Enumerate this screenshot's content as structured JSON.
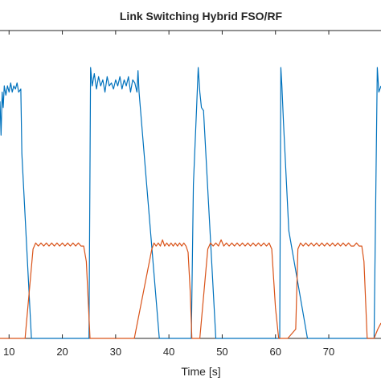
{
  "chart_data": {
    "type": "line",
    "title": "Link Switching Hybrid FSO/RF",
    "xlabel": "Time [s]",
    "ylabel": "",
    "xlim": [
      8.3,
      79.8
    ],
    "ylim": [
      0,
      1
    ],
    "x_ticks": [
      10,
      20,
      30,
      40,
      50,
      60,
      70
    ],
    "x_tick_labels": [
      "10",
      "20",
      "30",
      "40",
      "50",
      "60",
      "70"
    ],
    "grid": false,
    "colors": {
      "series_1": "#0072BD",
      "series_2": "#D95319",
      "axis": "#262626"
    },
    "series": [
      {
        "color": "#0072BD",
        "points": [
          [
            8.3,
            0.77
          ],
          [
            8.5,
            0.66
          ],
          [
            8.7,
            0.8
          ],
          [
            8.9,
            0.75
          ],
          [
            9.1,
            0.82
          ],
          [
            9.4,
            0.79
          ],
          [
            9.7,
            0.82
          ],
          [
            10.0,
            0.8
          ],
          [
            10.3,
            0.83
          ],
          [
            10.6,
            0.8
          ],
          [
            10.9,
            0.82
          ],
          [
            11.2,
            0.81
          ],
          [
            11.5,
            0.83
          ],
          [
            11.8,
            0.8
          ],
          [
            12.2,
            0.81
          ],
          [
            12.4,
            0.6
          ],
          [
            14.2,
            0.0
          ],
          [
            25.0,
            0.0
          ],
          [
            25.3,
            0.88
          ],
          [
            25.6,
            0.82
          ],
          [
            26.0,
            0.86
          ],
          [
            26.4,
            0.81
          ],
          [
            26.8,
            0.85
          ],
          [
            27.2,
            0.82
          ],
          [
            27.6,
            0.84
          ],
          [
            28.0,
            0.8
          ],
          [
            28.4,
            0.85
          ],
          [
            28.8,
            0.82
          ],
          [
            29.2,
            0.83
          ],
          [
            29.6,
            0.81
          ],
          [
            30.0,
            0.84
          ],
          [
            30.4,
            0.82
          ],
          [
            30.8,
            0.85
          ],
          [
            31.2,
            0.81
          ],
          [
            31.6,
            0.84
          ],
          [
            32.0,
            0.82
          ],
          [
            32.4,
            0.85
          ],
          [
            32.8,
            0.8
          ],
          [
            33.2,
            0.84
          ],
          [
            33.6,
            0.83
          ],
          [
            34.0,
            0.8
          ],
          [
            34.2,
            0.87
          ],
          [
            34.4,
            0.8
          ],
          [
            38.2,
            0.0
          ],
          [
            44.2,
            0.0
          ],
          [
            44.6,
            0.5
          ],
          [
            45.2,
            0.75
          ],
          [
            45.5,
            0.88
          ],
          [
            45.8,
            0.8
          ],
          [
            46.1,
            0.75
          ],
          [
            46.5,
            0.74
          ],
          [
            48.8,
            0.0
          ],
          [
            60.8,
            0.0
          ],
          [
            61.0,
            0.88
          ],
          [
            61.2,
            0.82
          ],
          [
            61.5,
            0.7
          ],
          [
            62.5,
            0.35
          ],
          [
            66.0,
            0.0
          ],
          [
            78.5,
            0.0
          ],
          [
            79.1,
            0.88
          ],
          [
            79.4,
            0.8
          ],
          [
            79.8,
            0.82
          ]
        ]
      },
      {
        "color": "#D95319",
        "points": [
          [
            8.3,
            0.0
          ],
          [
            13.0,
            0.0
          ],
          [
            14.5,
            0.29
          ],
          [
            15.0,
            0.31
          ],
          [
            15.5,
            0.3
          ],
          [
            16.0,
            0.31
          ],
          [
            16.5,
            0.3
          ],
          [
            17.0,
            0.31
          ],
          [
            17.5,
            0.3
          ],
          [
            18.0,
            0.31
          ],
          [
            18.5,
            0.3
          ],
          [
            19.0,
            0.31
          ],
          [
            19.5,
            0.3
          ],
          [
            20.0,
            0.31
          ],
          [
            20.5,
            0.3
          ],
          [
            21.0,
            0.31
          ],
          [
            21.5,
            0.3
          ],
          [
            22.0,
            0.31
          ],
          [
            22.5,
            0.3
          ],
          [
            23.0,
            0.31
          ],
          [
            23.5,
            0.3
          ],
          [
            24.0,
            0.3
          ],
          [
            24.5,
            0.25
          ],
          [
            25.2,
            0.0
          ],
          [
            33.5,
            0.0
          ],
          [
            36.8,
            0.29
          ],
          [
            37.2,
            0.31
          ],
          [
            37.6,
            0.3
          ],
          [
            38.0,
            0.31
          ],
          [
            38.4,
            0.3
          ],
          [
            38.8,
            0.32
          ],
          [
            39.2,
            0.3
          ],
          [
            39.6,
            0.31
          ],
          [
            40.0,
            0.3
          ],
          [
            40.4,
            0.31
          ],
          [
            40.8,
            0.3
          ],
          [
            41.2,
            0.31
          ],
          [
            41.6,
            0.3
          ],
          [
            42.0,
            0.31
          ],
          [
            42.4,
            0.3
          ],
          [
            42.8,
            0.31
          ],
          [
            43.2,
            0.3
          ],
          [
            43.6,
            0.28
          ],
          [
            44.0,
            0.15
          ],
          [
            44.3,
            0.0
          ],
          [
            45.8,
            0.0
          ],
          [
            47.3,
            0.29
          ],
          [
            47.8,
            0.31
          ],
          [
            48.3,
            0.3
          ],
          [
            48.8,
            0.31
          ],
          [
            49.3,
            0.3
          ],
          [
            49.8,
            0.32
          ],
          [
            50.3,
            0.3
          ],
          [
            50.8,
            0.31
          ],
          [
            51.3,
            0.3
          ],
          [
            51.8,
            0.31
          ],
          [
            52.3,
            0.3
          ],
          [
            52.8,
            0.31
          ],
          [
            53.3,
            0.3
          ],
          [
            53.8,
            0.31
          ],
          [
            54.3,
            0.3
          ],
          [
            54.8,
            0.31
          ],
          [
            55.3,
            0.3
          ],
          [
            55.8,
            0.31
          ],
          [
            56.3,
            0.3
          ],
          [
            56.8,
            0.31
          ],
          [
            57.3,
            0.3
          ],
          [
            57.8,
            0.31
          ],
          [
            58.3,
            0.3
          ],
          [
            58.8,
            0.31
          ],
          [
            59.3,
            0.29
          ],
          [
            60.0,
            0.1
          ],
          [
            60.6,
            0.0
          ],
          [
            62.3,
            0.0
          ],
          [
            63.8,
            0.03
          ],
          [
            64.2,
            0.29
          ],
          [
            64.7,
            0.31
          ],
          [
            65.2,
            0.3
          ],
          [
            65.7,
            0.31
          ],
          [
            66.2,
            0.3
          ],
          [
            66.7,
            0.31
          ],
          [
            67.2,
            0.3
          ],
          [
            67.7,
            0.31
          ],
          [
            68.2,
            0.3
          ],
          [
            68.7,
            0.31
          ],
          [
            69.2,
            0.3
          ],
          [
            69.7,
            0.31
          ],
          [
            70.2,
            0.3
          ],
          [
            70.7,
            0.31
          ],
          [
            71.2,
            0.3
          ],
          [
            71.7,
            0.31
          ],
          [
            72.2,
            0.3
          ],
          [
            72.7,
            0.31
          ],
          [
            73.2,
            0.3
          ],
          [
            73.7,
            0.31
          ],
          [
            74.2,
            0.3
          ],
          [
            74.7,
            0.3
          ],
          [
            75.2,
            0.31
          ],
          [
            75.7,
            0.3
          ],
          [
            76.2,
            0.3
          ],
          [
            76.6,
            0.25
          ],
          [
            77.2,
            0.0
          ],
          [
            78.5,
            0.0
          ],
          [
            79.2,
            0.03
          ],
          [
            79.8,
            0.05
          ]
        ]
      }
    ]
  }
}
